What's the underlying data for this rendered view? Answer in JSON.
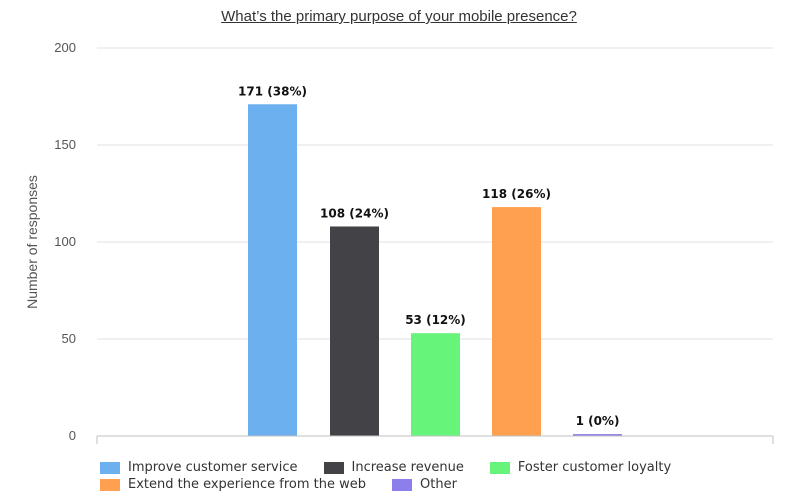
{
  "chart_data": {
    "type": "bar",
    "title": "What’s the primary purpose of your mobile presence?",
    "ylabel": "Number of responses",
    "xlabel": "",
    "ylim": [
      0,
      200
    ],
    "yticks": [
      0,
      50,
      100,
      150,
      200
    ],
    "grid": true,
    "legend_position": "bottom",
    "categories": [
      "Improve customer service",
      "Increase revenue",
      "Foster customer loyalty",
      "Extend the experience from the web",
      "Other"
    ],
    "values": [
      171,
      108,
      53,
      118,
      1
    ],
    "data_labels": [
      "171 (38%)",
      "108 (24%)",
      "53 (12%)",
      "118 (26%)",
      "1 (0%)"
    ],
    "colors": [
      "#6CB0F0",
      "#434347",
      "#66F57A",
      "#FFA050",
      "#8C7FEC"
    ]
  }
}
